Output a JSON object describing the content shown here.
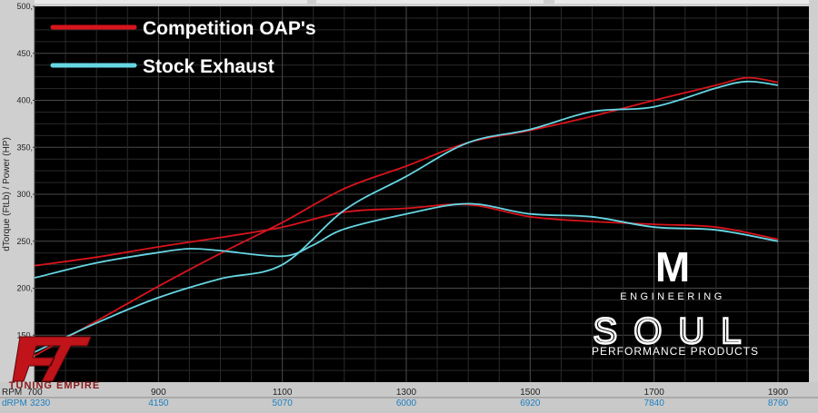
{
  "chart_data": {
    "type": "line",
    "ylabel": "dTorque (FtLb) / Power (HP)",
    "ylim": [
      100,
      500
    ],
    "y_ticks": [
      "150",
      "200",
      "250",
      "300",
      "350",
      "400",
      "450",
      "500"
    ],
    "xlim": [
      700,
      1900
    ],
    "x_label_rpm": "RPM",
    "x_label_drpm": "dRPM",
    "x_ticks_rpm": [
      "700",
      "900",
      "1100",
      "1300",
      "1500",
      "1700",
      "1900"
    ],
    "x_ticks_drpm": [
      "3230",
      "4150",
      "5070",
      "6000",
      "6920",
      "7840",
      "8760"
    ],
    "legend_placement": "top-left",
    "grid": true,
    "series": [
      {
        "name": "Competition OAP's",
        "color": "#d8141c",
        "kind": "power",
        "x": [
          700,
          800,
          900,
          1000,
          1100,
          1200,
          1300,
          1400,
          1500,
          1600,
          1700,
          1800,
          1850,
          1900
        ],
        "y": [
          128,
          165,
          202,
          237,
          270,
          306,
          330,
          355,
          368,
          383,
          400,
          416,
          424,
          419
        ]
      },
      {
        "name": "Competition OAP's",
        "color": "#d8141c",
        "kind": "torque",
        "x": [
          700,
          800,
          900,
          1000,
          1100,
          1200,
          1300,
          1400,
          1500,
          1600,
          1700,
          1800,
          1900
        ],
        "y": [
          224,
          233,
          244,
          254,
          265,
          281,
          285,
          289,
          276,
          271,
          268,
          265,
          252
        ]
      },
      {
        "name": "Stock Exhaust",
        "color": "#66d6e2",
        "kind": "power",
        "x": [
          700,
          800,
          900,
          1000,
          1100,
          1200,
          1300,
          1400,
          1500,
          1600,
          1700,
          1800,
          1850,
          1900
        ],
        "y": [
          132,
          163,
          190,
          210,
          225,
          283,
          319,
          355,
          369,
          388,
          393,
          413,
          420,
          416
        ]
      },
      {
        "name": "Stock Exhaust",
        "color": "#66d6e2",
        "kind": "torque",
        "x": [
          700,
          800,
          900,
          950,
          1000,
          1100,
          1150,
          1200,
          1300,
          1400,
          1500,
          1600,
          1700,
          1800,
          1900
        ],
        "y": [
          211,
          227,
          238,
          242,
          240,
          234,
          246,
          263,
          279,
          290,
          279,
          276,
          265,
          262,
          250
        ]
      }
    ]
  },
  "logos": {
    "m_mark": "M",
    "m_sub": "ENGINEERING",
    "soul": "SOUL",
    "soul_sub": "PERFORMANCE PRODUCTS",
    "tuning": "TUNING EMPIRE"
  }
}
